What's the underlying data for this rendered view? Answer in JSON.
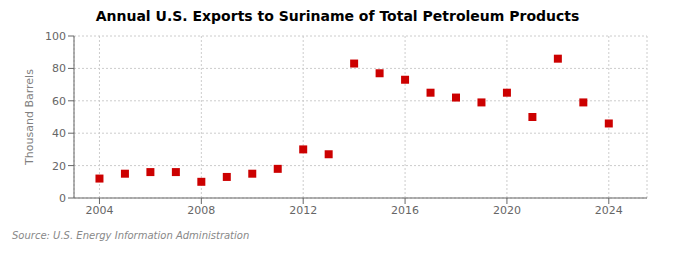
{
  "chart_data": {
    "type": "scatter",
    "title": "Annual U.S. Exports to Suriname of Total Petroleum Products",
    "ylabel": "Thousand Barrels",
    "annotations": [
      "Source: U.S. Energy Information Administration"
    ],
    "x": [
      2004,
      2005,
      2006,
      2007,
      2008,
      2009,
      2010,
      2011,
      2012,
      2013,
      2014,
      2015,
      2016,
      2017,
      2018,
      2019,
      2020,
      2021,
      2022,
      2023,
      2024
    ],
    "values": [
      12,
      15,
      16,
      16,
      10,
      13,
      15,
      18,
      30,
      27,
      83,
      77,
      73,
      65,
      62,
      59,
      65,
      50,
      86,
      59,
      46
    ],
    "color": "#cc0000",
    "marker": "square",
    "xlim": [
      2003.0,
      2025.5
    ],
    "xticks": [
      2004,
      2008,
      2012,
      2016,
      2020,
      2024
    ],
    "ylim": [
      0,
      100
    ],
    "yticks": [
      0,
      20,
      40,
      60,
      80,
      100
    ],
    "grid": true
  }
}
